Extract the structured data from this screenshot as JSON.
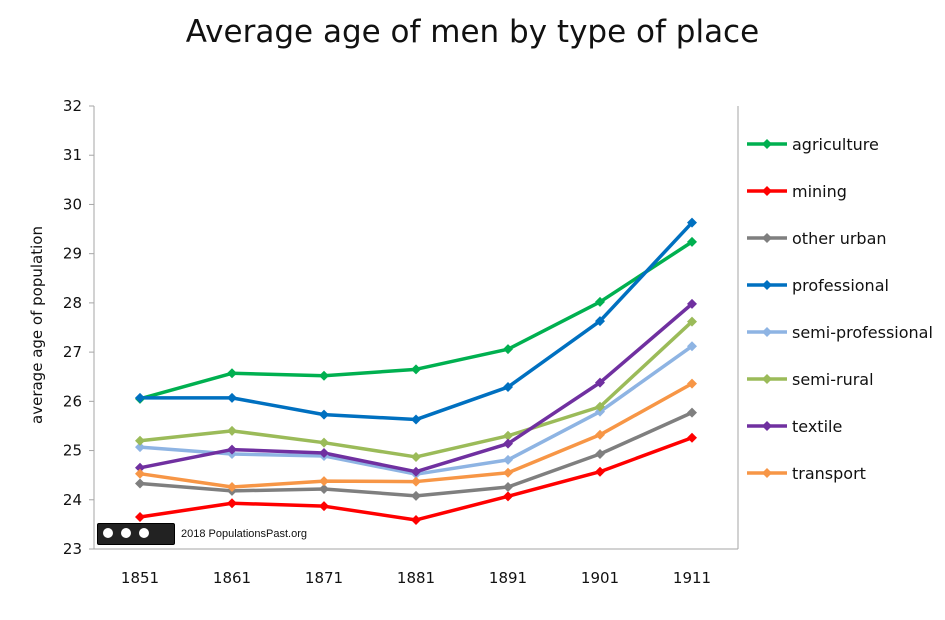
{
  "chart_data": {
    "type": "line",
    "title": "Average age of men by type of place",
    "xlabel": "",
    "ylabel": "average age of population",
    "categories": [
      "1851",
      "1861",
      "1871",
      "1881",
      "1891",
      "1901",
      "1911"
    ],
    "ylim": [
      23,
      32
    ],
    "yticks": [
      23,
      24,
      25,
      26,
      27,
      28,
      29,
      30,
      31,
      32
    ],
    "grid": false,
    "legend_position": "right",
    "series": [
      {
        "name": "agriculture",
        "color": "#00b050",
        "values": [
          26.05,
          26.57,
          26.52,
          26.65,
          27.06,
          28.02,
          29.24
        ]
      },
      {
        "name": "mining",
        "color": "#ff0000",
        "values": [
          23.65,
          23.93,
          23.87,
          23.59,
          24.07,
          24.57,
          25.26
        ]
      },
      {
        "name": "other urban",
        "color": "#7f7f7f",
        "values": [
          24.33,
          24.18,
          24.22,
          24.08,
          24.26,
          24.93,
          25.77
        ]
      },
      {
        "name": "professional",
        "color": "#0070c0",
        "values": [
          26.07,
          26.07,
          25.73,
          25.63,
          26.29,
          27.63,
          29.63
        ]
      },
      {
        "name": "semi-professional",
        "color": "#8eb4e3",
        "values": [
          25.07,
          24.93,
          24.89,
          24.52,
          24.81,
          25.79,
          27.12
        ]
      },
      {
        "name": "semi-rural",
        "color": "#9bbb59",
        "values": [
          25.2,
          25.4,
          25.16,
          24.87,
          25.3,
          25.89,
          27.62
        ]
      },
      {
        "name": "textile",
        "color": "#7030a0",
        "values": [
          24.65,
          25.02,
          24.95,
          24.57,
          25.14,
          26.38,
          27.98
        ]
      },
      {
        "name": "transport",
        "color": "#f79646",
        "values": [
          24.53,
          24.26,
          24.38,
          24.37,
          24.55,
          25.32,
          26.36
        ]
      }
    ]
  },
  "credit": {
    "badge": "cc by sa",
    "text": "2018 PopulationsPast.org"
  }
}
